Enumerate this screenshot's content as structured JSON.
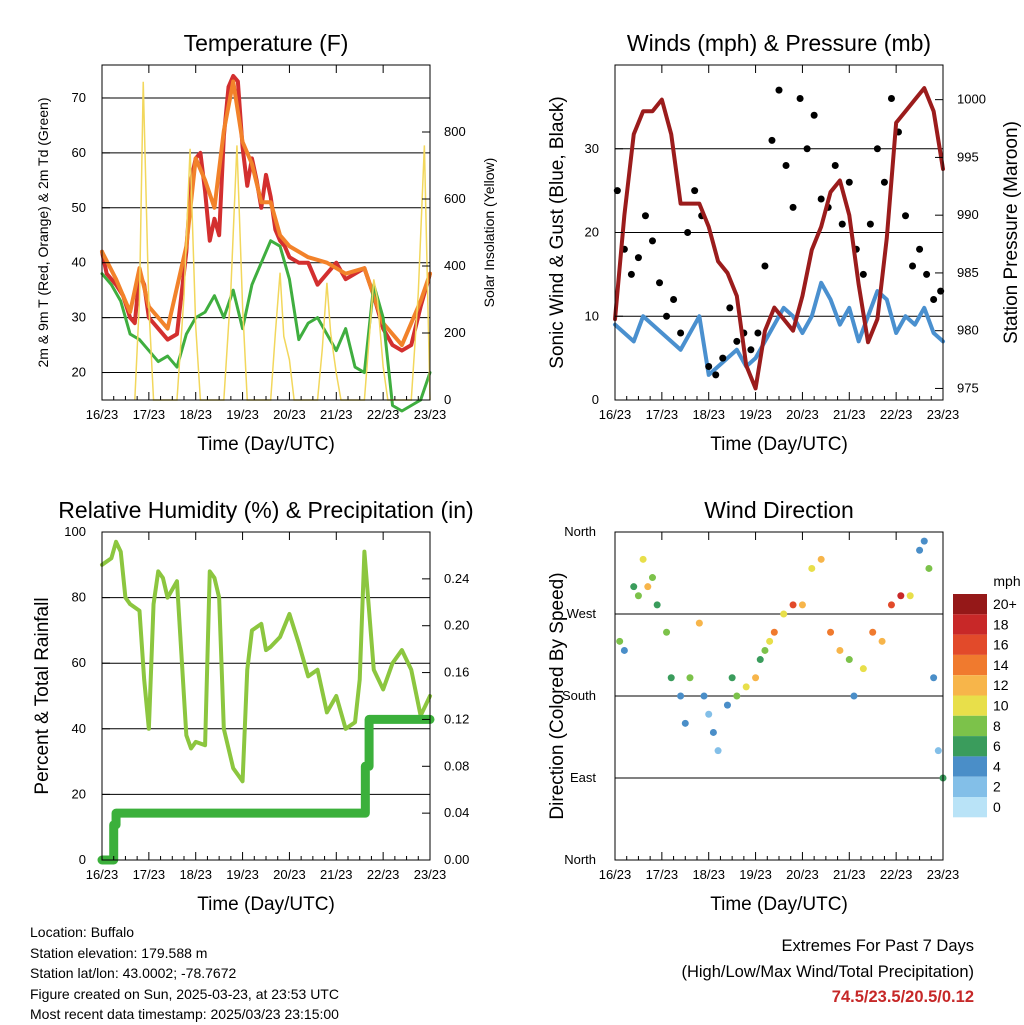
{
  "colors": {
    "temp2m": "#d32f2f",
    "temp9m": "#f2822a",
    "dewpoint": "#3fae3f",
    "solar": "#f2d75c",
    "wind": "#4a90cf",
    "gust": "#000000",
    "pressure": "#9b1c1c",
    "rh": "#8cc63f",
    "precip": "#3bb03b",
    "footer_extremes": "#c62828"
  },
  "x_ticks": [
    "16/23",
    "17/23",
    "18/23",
    "19/23",
    "20/23",
    "21/23",
    "22/23",
    "23/23"
  ],
  "x_label": "Time (Day/UTC)",
  "chart_data": [
    {
      "id": "temperature",
      "type": "line",
      "title": "Temperature (F)",
      "xlabel": "Time (Day/UTC)",
      "ylabel": "2m & 9m T (Red, Orange) & 2m Td (Green)",
      "ylabel_right": "Solar Insolation (Yellow)",
      "ylim": [
        15,
        76
      ],
      "yticks": [
        20,
        30,
        40,
        50,
        60,
        70
      ],
      "ylim_right": [
        0,
        1000
      ],
      "yticks_right": [
        0,
        200,
        400,
        600,
        800
      ],
      "x_days": [
        0,
        7
      ],
      "grid": "horizontal",
      "series": [
        {
          "key": "t2m",
          "kind": "line",
          "color": "temp2m",
          "x": [
            0,
            0.1,
            0.2,
            0.3,
            0.45,
            0.6,
            0.7,
            0.8,
            0.9,
            1.0,
            1.2,
            1.4,
            1.6,
            1.8,
            1.9,
            2.0,
            2.1,
            2.2,
            2.3,
            2.4,
            2.5,
            2.6,
            2.7,
            2.8,
            2.9,
            3.0,
            3.1,
            3.2,
            3.3,
            3.4,
            3.5,
            3.6,
            3.7,
            3.8,
            3.9,
            4.0,
            4.2,
            4.4,
            4.6,
            4.8,
            5.0,
            5.2,
            5.4,
            5.6,
            5.8,
            6.0,
            6.2,
            6.4,
            6.6,
            6.8,
            7.0
          ],
          "y": [
            42,
            38,
            37,
            36,
            34,
            30,
            29,
            38,
            36,
            30,
            28,
            26,
            27,
            42,
            55,
            59,
            60,
            53,
            44,
            48,
            45,
            63,
            72,
            74,
            73,
            61,
            54,
            59,
            55,
            50,
            56,
            52,
            46,
            44,
            43,
            41,
            40,
            40,
            36,
            38,
            40,
            37,
            38,
            39,
            34,
            28,
            25,
            24,
            25,
            32,
            38
          ]
        },
        {
          "key": "t9m",
          "kind": "line",
          "color": "temp9m",
          "x": [
            0,
            0.3,
            0.6,
            0.8,
            1.0,
            1.4,
            1.8,
            2.0,
            2.2,
            2.4,
            2.6,
            2.8,
            3.0,
            3.2,
            3.4,
            3.6,
            3.8,
            4.0,
            4.4,
            4.8,
            5.2,
            5.6,
            6.0,
            6.4,
            6.8,
            7.0
          ],
          "y": [
            42,
            37,
            31,
            39,
            32,
            28,
            43,
            59,
            55,
            50,
            64,
            73,
            62,
            58,
            51,
            51,
            45,
            43,
            41,
            40,
            38,
            39,
            29,
            25,
            33,
            38
          ]
        },
        {
          "key": "td",
          "kind": "line",
          "color": "dewpoint",
          "x": [
            0,
            0.2,
            0.4,
            0.6,
            0.8,
            1.0,
            1.2,
            1.4,
            1.6,
            1.8,
            2.0,
            2.2,
            2.4,
            2.6,
            2.8,
            3.0,
            3.2,
            3.4,
            3.6,
            3.8,
            4.0,
            4.2,
            4.4,
            4.6,
            4.8,
            5.0,
            5.2,
            5.4,
            5.6,
            5.8,
            6.0,
            6.2,
            6.4,
            6.6,
            6.8,
            7.0
          ],
          "y": [
            38,
            36,
            33,
            27,
            26,
            24,
            22,
            23,
            21,
            27,
            30,
            31,
            34,
            30,
            35,
            28,
            36,
            40,
            44,
            43,
            37,
            26,
            29,
            30,
            27,
            24,
            28,
            21,
            20,
            36,
            30,
            14,
            13,
            14,
            15,
            20
          ]
        },
        {
          "key": "solar",
          "kind": "area",
          "color": "solar",
          "axis": "right",
          "x": [
            0.7,
            0.8,
            0.88,
            1.0,
            1.1,
            1.6,
            1.75,
            1.88,
            2.0,
            2.1,
            2.6,
            2.75,
            2.88,
            3.0,
            3.1,
            3.6,
            3.7,
            3.8,
            3.88,
            4.0,
            4.1,
            4.6,
            4.7,
            4.8,
            4.88,
            5.0,
            5.1,
            5.6,
            5.7,
            5.8,
            5.88,
            6.0,
            6.1,
            6.6,
            6.75,
            6.88,
            7.0
          ],
          "y": [
            0,
            300,
            950,
            280,
            0,
            0,
            310,
            750,
            220,
            0,
            0,
            330,
            760,
            280,
            0,
            0,
            200,
            380,
            190,
            120,
            0,
            0,
            150,
            350,
            200,
            80,
            0,
            0,
            180,
            360,
            300,
            100,
            0,
            0,
            320,
            760,
            0
          ]
        }
      ]
    },
    {
      "id": "winds",
      "type": "line",
      "title": "Winds (mph) & Pressure (mb)",
      "xlabel": "Time (Day/UTC)",
      "ylabel": "Sonic Wind & Gust (Blue, Black)",
      "ylabel_right": "Station Pressure (Maroon)",
      "ylim": [
        0,
        40
      ],
      "yticks": [
        0,
        10,
        20,
        30
      ],
      "ylim_right": [
        974,
        1003
      ],
      "yticks_right": [
        975,
        980,
        985,
        990,
        995,
        1000
      ],
      "x_days": [
        0,
        7
      ],
      "grid": "horizontal",
      "series": [
        {
          "key": "wind",
          "kind": "line",
          "color": "wind",
          "x": [
            0,
            0.2,
            0.4,
            0.6,
            0.8,
            1.0,
            1.2,
            1.4,
            1.6,
            1.8,
            2.0,
            2.2,
            2.4,
            2.6,
            2.8,
            3.0,
            3.2,
            3.4,
            3.6,
            3.8,
            4.0,
            4.2,
            4.4,
            4.6,
            4.8,
            5.0,
            5.2,
            5.4,
            5.6,
            5.8,
            6.0,
            6.2,
            6.4,
            6.6,
            6.8,
            7.0
          ],
          "y": [
            9,
            8,
            7,
            10,
            9,
            8,
            7,
            6,
            8,
            10,
            3,
            4,
            5,
            6,
            4,
            5,
            7,
            9,
            11,
            10,
            8,
            10,
            14,
            12,
            9,
            11,
            7,
            10,
            13,
            12,
            8,
            10,
            9,
            11,
            8,
            7
          ]
        },
        {
          "key": "gust",
          "kind": "scatter",
          "color": "gust",
          "x": [
            0.05,
            0.2,
            0.35,
            0.5,
            0.65,
            0.8,
            0.95,
            1.1,
            1.25,
            1.4,
            1.55,
            1.7,
            1.85,
            2.0,
            2.15,
            2.3,
            2.45,
            2.6,
            2.75,
            2.9,
            3.05,
            3.2,
            3.35,
            3.5,
            3.65,
            3.8,
            3.95,
            4.1,
            4.25,
            4.4,
            4.55,
            4.7,
            4.85,
            5.0,
            5.15,
            5.3,
            5.45,
            5.6,
            5.75,
            5.9,
            6.05,
            6.2,
            6.35,
            6.5,
            6.65,
            6.8,
            6.95
          ],
          "y": [
            25,
            18,
            15,
            17,
            22,
            19,
            14,
            10,
            12,
            8,
            20,
            25,
            22,
            4,
            3,
            5,
            11,
            7,
            8,
            6,
            8,
            16,
            31,
            37,
            28,
            23,
            36,
            30,
            34,
            24,
            23,
            28,
            21,
            26,
            18,
            15,
            21,
            30,
            26,
            36,
            32,
            22,
            16,
            18,
            15,
            12,
            13
          ]
        },
        {
          "key": "pressure",
          "kind": "line",
          "color": "pressure",
          "axis": "right",
          "x": [
            0,
            0.2,
            0.4,
            0.6,
            0.8,
            1.0,
            1.2,
            1.4,
            1.6,
            1.8,
            2.0,
            2.2,
            2.4,
            2.6,
            2.8,
            3.0,
            3.2,
            3.4,
            3.6,
            3.8,
            4.0,
            4.2,
            4.4,
            4.6,
            4.8,
            5.0,
            5.2,
            5.4,
            5.6,
            5.8,
            6.0,
            6.2,
            6.4,
            6.6,
            6.8,
            7.0
          ],
          "y": [
            981,
            990,
            997,
            999,
            999,
            1000,
            997,
            991,
            991,
            991,
            989,
            986,
            985,
            983,
            977,
            975,
            980,
            982,
            981,
            980,
            983,
            987,
            989,
            992,
            993,
            990,
            984,
            979,
            981,
            988,
            998,
            999,
            1000,
            1001,
            999,
            994
          ]
        }
      ]
    },
    {
      "id": "humidity",
      "type": "line",
      "title": "Relative Humidity (%) & Precipitation (in)",
      "xlabel": "Time (Day/UTC)",
      "ylabel": "Percent & Total Rainfall",
      "ylim": [
        0,
        100
      ],
      "yticks": [
        0,
        20,
        40,
        60,
        80,
        100
      ],
      "ylim_right": [
        0,
        0.28
      ],
      "yticks_right": [
        0.0,
        0.04,
        0.08,
        0.12,
        0.16,
        0.2,
        0.24
      ],
      "x_days": [
        0,
        7
      ],
      "grid": "horizontal",
      "series": [
        {
          "key": "rh",
          "kind": "line",
          "color": "rh",
          "x": [
            0,
            0.2,
            0.3,
            0.4,
            0.5,
            0.6,
            0.8,
            0.9,
            1.0,
            1.1,
            1.2,
            1.3,
            1.4,
            1.6,
            1.8,
            1.9,
            2.0,
            2.2,
            2.3,
            2.4,
            2.5,
            2.6,
            2.8,
            3.0,
            3.1,
            3.2,
            3.4,
            3.5,
            3.6,
            3.8,
            4.0,
            4.2,
            4.4,
            4.6,
            4.8,
            5.0,
            5.2,
            5.4,
            5.5,
            5.6,
            5.8,
            6.0,
            6.2,
            6.4,
            6.6,
            6.8,
            7.0
          ],
          "y": [
            90,
            92,
            97,
            94,
            80,
            78,
            76,
            55,
            40,
            78,
            88,
            86,
            80,
            85,
            38,
            34,
            36,
            35,
            88,
            86,
            80,
            40,
            28,
            24,
            58,
            70,
            72,
            64,
            65,
            68,
            75,
            66,
            56,
            58,
            45,
            50,
            40,
            42,
            55,
            94,
            58,
            52,
            60,
            64,
            58,
            44,
            50
          ]
        },
        {
          "key": "precip",
          "kind": "step",
          "color": "precip",
          "axis": "right",
          "x": [
            0,
            0.2,
            0.25,
            0.3,
            1.0,
            3.0,
            5.0,
            5.6,
            5.62,
            5.7,
            7.0
          ],
          "y": [
            0,
            0,
            0.03,
            0.04,
            0.04,
            0.04,
            0.04,
            0.04,
            0.08,
            0.12,
            0.12
          ]
        }
      ]
    },
    {
      "id": "direction",
      "type": "scatter",
      "title": "Wind Direction",
      "xlabel": "Time (Day/UTC)",
      "ylabel": "Direction (Colored By Speed)",
      "y_categories": [
        "North",
        "East",
        "South",
        "West",
        "North"
      ],
      "ylim": [
        0,
        360
      ],
      "x_days": [
        0,
        7
      ],
      "grid": "horizontal",
      "colorbar": {
        "title": "mph",
        "labels": [
          "0",
          "2",
          "4",
          "6",
          "8",
          "10",
          "12",
          "14",
          "16",
          "18",
          "20+"
        ],
        "colors": [
          "#b9e3f7",
          "#83bfe8",
          "#4a8ec8",
          "#3a9c5c",
          "#7cc24a",
          "#e8df4a",
          "#f7b54a",
          "#f07a2e",
          "#e24a2a",
          "#c82828",
          "#951818"
        ]
      },
      "series": [
        {
          "key": "dir",
          "kind": "scatter",
          "x": [
            0.1,
            0.2,
            0.4,
            0.5,
            0.6,
            0.7,
            0.8,
            0.9,
            1.1,
            1.2,
            1.4,
            1.5,
            1.6,
            1.8,
            1.9,
            2.0,
            2.1,
            2.2,
            2.4,
            2.5,
            2.6,
            2.8,
            3.0,
            3.1,
            3.2,
            3.3,
            3.4,
            3.6,
            3.8,
            4.0,
            4.2,
            4.4,
            4.6,
            4.8,
            5.0,
            5.1,
            5.3,
            5.5,
            5.7,
            5.9,
            6.1,
            6.3,
            6.5,
            6.6,
            6.7,
            6.8,
            6.9,
            7.0
          ],
          "y": [
            240,
            230,
            300,
            290,
            330,
            300,
            310,
            280,
            250,
            200,
            180,
            150,
            200,
            260,
            180,
            160,
            140,
            120,
            170,
            200,
            180,
            190,
            200,
            220,
            230,
            240,
            250,
            270,
            280,
            280,
            320,
            330,
            250,
            230,
            220,
            180,
            210,
            250,
            240,
            280,
            290,
            290,
            340,
            350,
            320,
            200,
            120,
            90
          ],
          "speed": [
            8,
            4,
            6,
            8,
            10,
            12,
            8,
            6,
            8,
            6,
            4,
            3,
            8,
            12,
            4,
            2,
            3,
            2,
            3,
            6,
            8,
            10,
            12,
            6,
            8,
            10,
            14,
            10,
            16,
            12,
            10,
            12,
            14,
            12,
            8,
            4,
            10,
            14,
            12,
            16,
            18,
            10,
            4,
            3,
            8,
            4,
            2,
            6
          ]
        }
      ]
    }
  ],
  "footer": {
    "location": "Location: Buffalo",
    "elevation": "Station elevation: 179.588 m",
    "latlon": "Station lat/lon: 43.0002; -78.7672",
    "created": "Figure created on Sun, 2025-03-23, at 23:53 UTC",
    "recent": "Most recent data timestamp: 2025/03/23 23:15:00",
    "extremes_title": "Extremes For Past 7 Days",
    "extremes_sub": "(High/Low/Max Wind/Total Precipitation)",
    "extremes_values": "74.5/23.5/20.5/0.12"
  }
}
